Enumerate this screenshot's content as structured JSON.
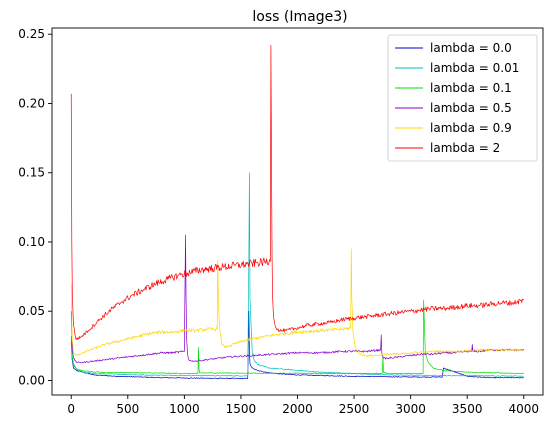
{
  "chart_data": {
    "type": "line",
    "title": "loss (Image3)",
    "xlabel": "",
    "ylabel": "",
    "xlim": [
      -170,
      4170
    ],
    "ylim": [
      -0.0105,
      0.2545
    ],
    "xticks": [
      0,
      500,
      1000,
      1500,
      2000,
      2500,
      3000,
      3500,
      4000
    ],
    "xtick_labels": [
      "0",
      "500",
      "1000",
      "1500",
      "2000",
      "2500",
      "3000",
      "3500",
      "4000"
    ],
    "yticks": [
      0.0,
      0.05,
      0.1,
      0.15,
      0.2,
      0.25
    ],
    "ytick_labels": [
      "0.00",
      "0.05",
      "0.10",
      "0.15",
      "0.20",
      "0.25"
    ],
    "grid": false,
    "legend_position": "top-right",
    "series": [
      {
        "name": "lambda = 0.0",
        "color": "#0000cc",
        "x": [
          0,
          8,
          20,
          50,
          100,
          200,
          400,
          600,
          800,
          1000,
          1200,
          1400,
          1560,
          1570,
          1575,
          1580,
          1600,
          1650,
          1800,
          2000,
          2500,
          3000,
          3280,
          3290,
          3500,
          3700,
          4000
        ],
        "y": [
          0.028,
          0.015,
          0.009,
          0.007,
          0.006,
          0.004,
          0.003,
          0.0025,
          0.002,
          0.0018,
          0.0016,
          0.0015,
          0.0014,
          0.05,
          0.02,
          0.012,
          0.009,
          0.007,
          0.005,
          0.004,
          0.003,
          0.0025,
          0.0025,
          0.009,
          0.003,
          0.002,
          0.002
        ]
      },
      {
        "name": "lambda = 0.01",
        "color": "#00bfbf",
        "x": [
          0,
          8,
          20,
          50,
          100,
          200,
          400,
          600,
          800,
          1000,
          1200,
          1400,
          1560,
          1570,
          1575,
          1580,
          1600,
          1620,
          1660,
          1750,
          1900,
          2200,
          2500,
          2800,
          3000,
          3300,
          3600,
          4000
        ],
        "y": [
          0.03,
          0.017,
          0.011,
          0.008,
          0.006,
          0.005,
          0.0045,
          0.004,
          0.0038,
          0.0036,
          0.0035,
          0.0034,
          0.0033,
          0.09,
          0.15,
          0.06,
          0.02,
          0.014,
          0.011,
          0.009,
          0.008,
          0.006,
          0.005,
          0.004,
          0.0038,
          0.0035,
          0.0034,
          0.0032
        ]
      },
      {
        "name": "lambda = 0.1",
        "color": "#00dd00",
        "x": [
          0,
          8,
          20,
          50,
          100,
          200,
          400,
          600,
          800,
          1000,
          1120,
          1125,
          1130,
          1135,
          1200,
          1400,
          1500,
          1700,
          1900,
          2200,
          2500,
          2750,
          2755,
          2760,
          2800,
          3000,
          3110,
          3115,
          3120,
          3130,
          3150,
          3200,
          3300,
          3500,
          4000
        ],
        "y": [
          0.032,
          0.018,
          0.012,
          0.008,
          0.007,
          0.006,
          0.0058,
          0.0055,
          0.0053,
          0.005,
          0.005,
          0.024,
          0.008,
          0.0055,
          0.0054,
          0.0054,
          0.0053,
          0.0052,
          0.0052,
          0.0051,
          0.005,
          0.005,
          0.018,
          0.006,
          0.005,
          0.005,
          0.005,
          0.058,
          0.045,
          0.02,
          0.014,
          0.009,
          0.007,
          0.006,
          0.005
        ]
      },
      {
        "name": "lambda = 0.5",
        "color": "#8800cc",
        "x": [
          0,
          8,
          20,
          50,
          100,
          200,
          300,
          400,
          500,
          600,
          700,
          800,
          900,
          1000,
          1010,
          1015,
          1020,
          1030,
          1040,
          1060,
          1100,
          1200,
          1400,
          1600,
          1800,
          2000,
          2200,
          2400,
          2600,
          2735,
          2740,
          2745,
          2760,
          2800,
          2900,
          3000,
          3100,
          3200,
          3300,
          3400,
          3500,
          3540,
          3545,
          3550,
          3600,
          3700,
          3800,
          3900,
          4000
        ],
        "y": [
          0.05,
          0.025,
          0.016,
          0.013,
          0.013,
          0.014,
          0.015,
          0.016,
          0.017,
          0.018,
          0.019,
          0.02,
          0.02,
          0.021,
          0.105,
          0.06,
          0.03,
          0.018,
          0.015,
          0.014,
          0.014,
          0.015,
          0.017,
          0.018,
          0.019,
          0.02,
          0.02,
          0.021,
          0.021,
          0.022,
          0.033,
          0.02,
          0.016,
          0.016,
          0.017,
          0.018,
          0.019,
          0.019,
          0.02,
          0.02,
          0.021,
          0.021,
          0.026,
          0.021,
          0.021,
          0.022,
          0.022,
          0.022,
          0.022
        ]
      },
      {
        "name": "lambda = 0.9",
        "color": "#ffd700",
        "x": [
          0,
          8,
          20,
          50,
          100,
          200,
          300,
          400,
          500,
          600,
          700,
          800,
          900,
          1000,
          1100,
          1200,
          1290,
          1295,
          1300,
          1310,
          1330,
          1360,
          1400,
          1500,
          1600,
          1800,
          2000,
          2200,
          2400,
          2470,
          2475,
          2480,
          2490,
          2510,
          2550,
          2600,
          2700,
          2800,
          2900,
          3000,
          3200,
          3400,
          3600,
          3800,
          4000
        ],
        "y": [
          0.07,
          0.03,
          0.02,
          0.018,
          0.02,
          0.023,
          0.026,
          0.028,
          0.03,
          0.032,
          0.034,
          0.035,
          0.035,
          0.036,
          0.036,
          0.037,
          0.037,
          0.087,
          0.06,
          0.04,
          0.026,
          0.024,
          0.025,
          0.028,
          0.03,
          0.033,
          0.035,
          0.036,
          0.037,
          0.038,
          0.095,
          0.06,
          0.035,
          0.024,
          0.019,
          0.018,
          0.018,
          0.019,
          0.019,
          0.02,
          0.021,
          0.021,
          0.022,
          0.022,
          0.022
        ]
      },
      {
        "name": "lambda = 2",
        "color": "#ff0000",
        "x": [
          0,
          5,
          10,
          20,
          40,
          80,
          150,
          250,
          350,
          450,
          550,
          650,
          750,
          850,
          950,
          1050,
          1150,
          1250,
          1350,
          1450,
          1550,
          1650,
          1750,
          1760,
          1765,
          1770,
          1775,
          1780,
          1790,
          1810,
          1840,
          1900,
          2000,
          2100,
          2200,
          2300,
          2400,
          2500,
          2600,
          2700,
          2800,
          2900,
          3000,
          3100,
          3200,
          3300,
          3400,
          3500,
          3600,
          3700,
          3800,
          3900,
          4000
        ],
        "y": [
          0.207,
          0.1,
          0.06,
          0.04,
          0.03,
          0.031,
          0.036,
          0.044,
          0.051,
          0.057,
          0.062,
          0.066,
          0.07,
          0.073,
          0.076,
          0.078,
          0.08,
          0.081,
          0.082,
          0.083,
          0.084,
          0.085,
          0.086,
          0.086,
          0.242,
          0.16,
          0.09,
          0.06,
          0.045,
          0.038,
          0.036,
          0.036,
          0.038,
          0.04,
          0.041,
          0.042,
          0.044,
          0.045,
          0.046,
          0.047,
          0.048,
          0.049,
          0.05,
          0.051,
          0.052,
          0.052,
          0.053,
          0.054,
          0.054,
          0.055,
          0.056,
          0.056,
          0.058
        ]
      }
    ]
  }
}
